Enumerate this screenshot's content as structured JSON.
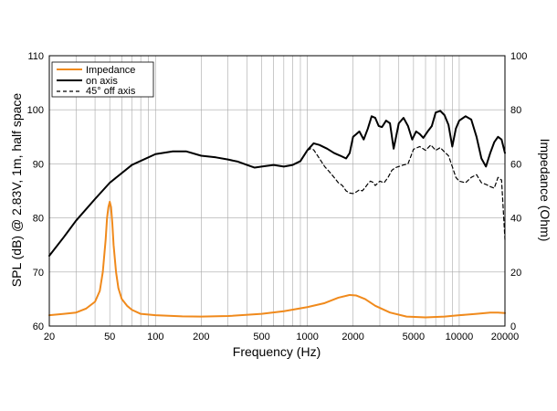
{
  "chart_data": {
    "type": "line",
    "xlabel": "Frequency (Hz)",
    "ylabel_left": "SPL (dB) @ 2.83V, 1m, half space",
    "ylabel_right": "Impedance (Ohm)",
    "x_scale": "log",
    "xlim": [
      20,
      20000
    ],
    "ylim_left": [
      60,
      110
    ],
    "ylim_right": [
      0,
      100
    ],
    "x_ticks": [
      20,
      50,
      100,
      200,
      500,
      1000,
      2000,
      5000,
      10000,
      20000
    ],
    "x_tick_labels": [
      "20",
      "50",
      "100",
      "200",
      "500",
      "1000",
      "2000",
      "5000",
      "10000",
      "20000"
    ],
    "y_left_ticks": [
      60,
      70,
      80,
      90,
      100,
      110
    ],
    "y_left_tick_labels": [
      "60",
      "70",
      "80",
      "90",
      "100",
      "110"
    ],
    "y_right_ticks": [
      0,
      20,
      40,
      60,
      80,
      100
    ],
    "y_right_tick_labels": [
      "0",
      "20",
      "40",
      "60",
      "80",
      "100"
    ],
    "grid": true,
    "legend_position": "top-left",
    "series": [
      {
        "name": "Impedance",
        "axis": "right",
        "color": "#f08a1c",
        "dash": "solid",
        "x": [
          20,
          25,
          30,
          35,
          40,
          43,
          45,
          47,
          48,
          49,
          50,
          51,
          52,
          53,
          55,
          57,
          60,
          65,
          70,
          80,
          100,
          150,
          200,
          300,
          500,
          700,
          1000,
          1300,
          1600,
          1900,
          2100,
          2400,
          2800,
          3500,
          4500,
          6000,
          8000,
          10000,
          13000,
          16000,
          18000,
          20000
        ],
        "y": [
          4,
          4.5,
          5,
          6.5,
          9,
          13,
          20,
          32,
          40,
          44,
          46,
          44,
          38,
          30,
          20,
          14,
          10,
          7.5,
          6,
          4.5,
          4,
          3.6,
          3.5,
          3.7,
          4.5,
          5.5,
          7,
          8.5,
          10.5,
          11.5,
          11.3,
          10,
          7.5,
          5,
          3.5,
          3.2,
          3.5,
          4,
          4.5,
          5,
          5,
          4.8
        ]
      },
      {
        "name": "on axis",
        "axis": "left",
        "color": "#000000",
        "dash": "solid",
        "x": [
          20,
          25,
          30,
          40,
          50,
          70,
          100,
          130,
          160,
          200,
          250,
          300,
          350,
          400,
          450,
          500,
          600,
          700,
          800,
          900,
          1000,
          1100,
          1200,
          1350,
          1500,
          1650,
          1800,
          1900,
          2000,
          2100,
          2200,
          2350,
          2500,
          2650,
          2800,
          2950,
          3100,
          3300,
          3500,
          3700,
          4000,
          4300,
          4600,
          4900,
          5200,
          5500,
          5800,
          6200,
          6600,
          7000,
          7500,
          8000,
          8500,
          9000,
          9500,
          10000,
          11000,
          12000,
          13000,
          14000,
          15000,
          16000,
          17000,
          18000,
          19000,
          20000
        ],
        "y": [
          73,
          76.5,
          79.5,
          83.5,
          86.5,
          89.8,
          91.8,
          92.3,
          92.3,
          91.5,
          91.2,
          90.8,
          90.4,
          89.8,
          89.3,
          89.5,
          89.8,
          89.5,
          89.8,
          90.5,
          92.5,
          93.8,
          93.5,
          92.8,
          92,
          91.5,
          91,
          92,
          95,
          95.5,
          96,
          94.5,
          96.5,
          98.8,
          98.5,
          97,
          96.8,
          98,
          97.5,
          92.8,
          97.5,
          98.5,
          97,
          94.5,
          96,
          95.5,
          94.8,
          96,
          97,
          99.5,
          99.8,
          99,
          97.2,
          93.2,
          96.5,
          98,
          98.8,
          98.2,
          95,
          91,
          89.5,
          92,
          94,
          95,
          94.5,
          92
        ]
      },
      {
        "name": "45° off axis",
        "axis": "left",
        "color": "#000000",
        "dash": "dashed",
        "x": [
          900,
          950,
          1000,
          1050,
          1100,
          1150,
          1200,
          1300,
          1400,
          1500,
          1600,
          1700,
          1800,
          1900,
          2000,
          2100,
          2200,
          2300,
          2400,
          2500,
          2600,
          2700,
          2800,
          3000,
          3200,
          3400,
          3600,
          3800,
          4000,
          4300,
          4600,
          5000,
          5500,
          6000,
          6500,
          7000,
          7500,
          8000,
          8500,
          9000,
          9500,
          10000,
          11000,
          12000,
          13000,
          14000,
          15000,
          16000,
          17000,
          18000,
          19000,
          20000
        ],
        "y": [
          90.5,
          91.5,
          92.5,
          92.8,
          92.6,
          91.8,
          91,
          89.5,
          88.5,
          87.5,
          86.5,
          86,
          85,
          84.6,
          84.5,
          84.8,
          85.2,
          85,
          85.6,
          86.3,
          86.8,
          86.6,
          86,
          86.8,
          86.5,
          87.5,
          88.8,
          89.3,
          89.5,
          89.8,
          90,
          92.7,
          93.2,
          92.5,
          93.5,
          92.5,
          93,
          92.2,
          91.5,
          89.5,
          87.5,
          86.8,
          86.5,
          87.5,
          88,
          86.5,
          86.2,
          85.8,
          85.5,
          87.5,
          87,
          76
        ]
      }
    ]
  }
}
